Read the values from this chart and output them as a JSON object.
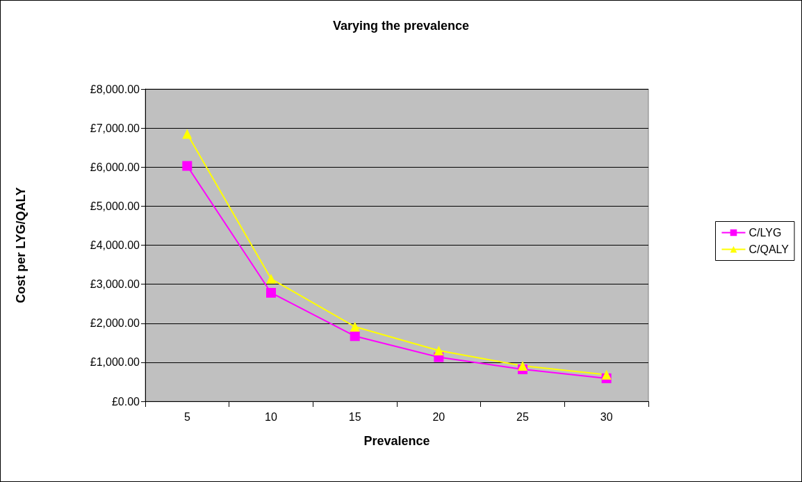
{
  "chart_data": {
    "type": "line",
    "title": "Varying the prevalence",
    "xlabel": "Prevalence",
    "ylabel": "Cost per LYG/QALY",
    "categories": [
      "5",
      "10",
      "15",
      "20",
      "25",
      "30"
    ],
    "series": [
      {
        "name": "C/LYG",
        "color": "#ff00ff",
        "marker": "square",
        "values": [
          6030,
          2780,
          1670,
          1130,
          820,
          590
        ]
      },
      {
        "name": "C/QALY",
        "color": "#ffff00",
        "marker": "triangle",
        "values": [
          6850,
          3140,
          1910,
          1300,
          910,
          680
        ]
      }
    ],
    "ylim": [
      0,
      8000
    ],
    "yticks": [
      {
        "value": 0,
        "label": "£0.00"
      },
      {
        "value": 1000,
        "label": "£1,000.00"
      },
      {
        "value": 2000,
        "label": "£2,000.00"
      },
      {
        "value": 3000,
        "label": "£3,000.00"
      },
      {
        "value": 4000,
        "label": "£4,000.00"
      },
      {
        "value": 5000,
        "label": "£5,000.00"
      },
      {
        "value": 6000,
        "label": "£6,000.00"
      },
      {
        "value": 7000,
        "label": "£7,000.00"
      },
      {
        "value": 8000,
        "label": "£8,000.00"
      }
    ],
    "grid": "y",
    "legend": "right",
    "line_style": "solid"
  }
}
